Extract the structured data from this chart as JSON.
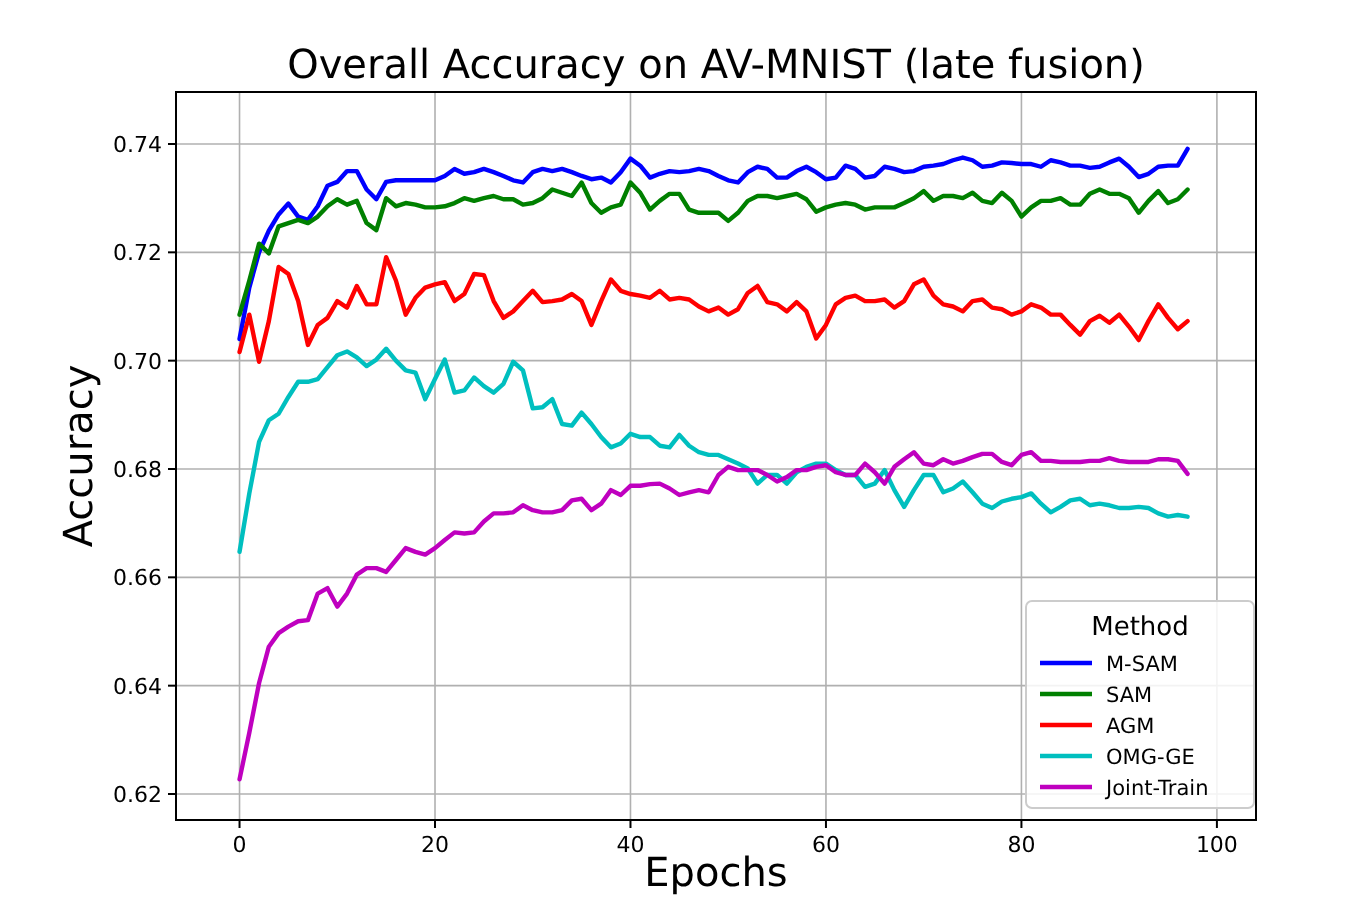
{
  "chart_data": {
    "type": "line",
    "title": "Overall Accuracy on AV-MNIST (late fusion)",
    "xlabel": "Epochs",
    "ylabel": "Accuracy",
    "legend_title": "Method",
    "legend": "bottom right",
    "grid": true,
    "marker": "none",
    "line_style": "solid",
    "x": [
      0,
      1,
      2,
      3,
      4,
      5,
      6,
      7,
      8,
      9,
      10,
      11,
      12,
      13,
      14,
      15,
      16,
      17,
      18,
      19,
      20,
      21,
      22,
      23,
      24,
      25,
      26,
      27,
      28,
      29,
      30,
      31,
      32,
      33,
      34,
      35,
      36,
      37,
      38,
      39,
      40,
      41,
      42,
      43,
      44,
      45,
      46,
      47,
      48,
      49,
      50,
      51,
      52,
      53,
      54,
      55,
      56,
      57,
      58,
      59,
      60,
      61,
      62,
      63,
      64,
      65,
      66,
      67,
      68,
      69,
      70,
      71,
      72,
      73,
      74,
      75,
      76,
      77,
      78,
      79,
      80,
      81,
      82,
      83,
      84,
      85,
      86,
      87,
      88,
      89,
      90,
      91,
      92,
      93,
      94,
      95,
      96,
      97
    ],
    "xlim": [
      -6.5,
      104
    ],
    "xticks": [
      0,
      20,
      40,
      60,
      80,
      100
    ],
    "ylim": [
      0.6152,
      0.7496
    ],
    "yticks": [
      0.62,
      0.64,
      0.66,
      0.68,
      {
        "value": 0.7,
        "label": "0.70"
      },
      0.72,
      0.74
    ],
    "series": [
      {
        "name": "M-SAM",
        "color": "#0000ff",
        "values": [
          0.704,
          0.7135,
          0.72,
          0.724,
          0.727,
          0.729,
          0.7266,
          0.726,
          0.7285,
          0.7323,
          0.733,
          0.735,
          0.735,
          0.7316,
          0.7298,
          0.733,
          0.7333,
          0.7333,
          0.7333,
          0.7333,
          0.7333,
          0.7341,
          0.7354,
          0.7345,
          0.7348,
          0.7354,
          0.7348,
          0.7341,
          0.7333,
          0.7329,
          0.7348,
          0.7354,
          0.735,
          0.7354,
          0.7348,
          0.7341,
          0.7335,
          0.7338,
          0.7329,
          0.7348,
          0.7373,
          0.736,
          0.7338,
          0.7345,
          0.735,
          0.7348,
          0.735,
          0.7354,
          0.735,
          0.7341,
          0.7333,
          0.7329,
          0.7348,
          0.7358,
          0.7354,
          0.7338,
          0.7338,
          0.735,
          0.7358,
          0.7348,
          0.7335,
          0.7338,
          0.736,
          0.7354,
          0.7338,
          0.7341,
          0.7358,
          0.7354,
          0.7348,
          0.735,
          0.7358,
          0.736,
          0.7363,
          0.737,
          0.7375,
          0.737,
          0.7358,
          0.736,
          0.7366,
          0.7365,
          0.7363,
          0.7363,
          0.7358,
          0.737,
          0.7366,
          0.736,
          0.736,
          0.7356,
          0.7358,
          0.7366,
          0.7373,
          0.7358,
          0.7339,
          0.7345,
          0.7358,
          0.736,
          0.736,
          0.7391
        ]
      },
      {
        "name": "SAM",
        "color": "#008000",
        "values": [
          0.7085,
          0.7148,
          0.7216,
          0.7198,
          0.7248,
          0.7254,
          0.726,
          0.7254,
          0.7266,
          0.7285,
          0.7298,
          0.7288,
          0.7295,
          0.7254,
          0.7241,
          0.73,
          0.7285,
          0.7291,
          0.7288,
          0.7283,
          0.7283,
          0.7285,
          0.7291,
          0.73,
          0.7295,
          0.73,
          0.7304,
          0.7298,
          0.7298,
          0.7288,
          0.7291,
          0.73,
          0.7316,
          0.731,
          0.7304,
          0.7329,
          0.7291,
          0.7273,
          0.7283,
          0.7288,
          0.7329,
          0.731,
          0.7279,
          0.7295,
          0.7308,
          0.7308,
          0.7279,
          0.7273,
          0.7273,
          0.7273,
          0.7258,
          0.7273,
          0.7295,
          0.7304,
          0.7304,
          0.73,
          0.7304,
          0.7308,
          0.7298,
          0.7275,
          0.7283,
          0.7288,
          0.7291,
          0.7288,
          0.7279,
          0.7283,
          0.7283,
          0.7283,
          0.7291,
          0.73,
          0.7313,
          0.7295,
          0.7304,
          0.7304,
          0.73,
          0.731,
          0.7295,
          0.7291,
          0.731,
          0.7295,
          0.7266,
          0.7283,
          0.7295,
          0.7295,
          0.73,
          0.7288,
          0.7288,
          0.7308,
          0.7316,
          0.7308,
          0.7308,
          0.73,
          0.7273,
          0.7295,
          0.7313,
          0.7291,
          0.7298,
          0.7316
        ]
      },
      {
        "name": "AGM",
        "color": "#ff0000",
        "values": [
          0.7016,
          0.7085,
          0.6998,
          0.7073,
          0.7173,
          0.716,
          0.711,
          0.7029,
          0.7066,
          0.7079,
          0.711,
          0.7098,
          0.7138,
          0.7104,
          0.7104,
          0.7191,
          0.7148,
          0.7085,
          0.7116,
          0.7135,
          0.7141,
          0.7145,
          0.711,
          0.7123,
          0.716,
          0.7158,
          0.711,
          0.7079,
          0.7091,
          0.711,
          0.7129,
          0.7108,
          0.711,
          0.7113,
          0.7123,
          0.711,
          0.7066,
          0.711,
          0.715,
          0.7129,
          0.7123,
          0.712,
          0.7116,
          0.7129,
          0.7113,
          0.7116,
          0.7113,
          0.71,
          0.7091,
          0.7098,
          0.7085,
          0.7095,
          0.7125,
          0.7138,
          0.7108,
          0.7104,
          0.7091,
          0.7108,
          0.7091,
          0.7041,
          0.7066,
          0.7104,
          0.7116,
          0.712,
          0.711,
          0.711,
          0.7113,
          0.7098,
          0.711,
          0.7141,
          0.715,
          0.712,
          0.7104,
          0.71,
          0.7091,
          0.711,
          0.7113,
          0.7098,
          0.7095,
          0.7085,
          0.7091,
          0.7104,
          0.7098,
          0.7085,
          0.7085,
          0.7066,
          0.7048,
          0.7073,
          0.7083,
          0.707,
          0.7085,
          0.7063,
          0.7038,
          0.7073,
          0.7104,
          0.7079,
          0.7058,
          0.7073
        ]
      },
      {
        "name": "OMG-GE",
        "color": "#00bfbf",
        "values": [
          0.6647,
          0.6755,
          0.685,
          0.689,
          0.6902,
          0.6933,
          0.6961,
          0.6961,
          0.6966,
          0.6988,
          0.701,
          0.7017,
          0.7006,
          0.699,
          0.7002,
          0.7022,
          0.7,
          0.6982,
          0.6978,
          0.6929,
          0.6966,
          0.7002,
          0.6941,
          0.6945,
          0.6969,
          0.6953,
          0.6941,
          0.6957,
          0.6998,
          0.6982,
          0.6912,
          0.6914,
          0.6929,
          0.6883,
          0.688,
          0.6904,
          0.6883,
          0.6859,
          0.684,
          0.6847,
          0.6865,
          0.6859,
          0.6859,
          0.6843,
          0.684,
          0.6863,
          0.6843,
          0.6831,
          0.6826,
          0.6826,
          0.6818,
          0.681,
          0.6801,
          0.6773,
          0.6789,
          0.6789,
          0.6773,
          0.6794,
          0.6804,
          0.681,
          0.681,
          0.6798,
          0.6789,
          0.6789,
          0.6767,
          0.6773,
          0.6798,
          0.6761,
          0.673,
          0.6761,
          0.6789,
          0.6789,
          0.6757,
          0.6764,
          0.6777,
          0.6757,
          0.6736,
          0.6728,
          0.674,
          0.6745,
          0.6748,
          0.6755,
          0.6736,
          0.672,
          0.673,
          0.6742,
          0.6745,
          0.6733,
          0.6736,
          0.6733,
          0.6728,
          0.6728,
          0.673,
          0.6728,
          0.6718,
          0.6712,
          0.6715,
          0.6712
        ]
      },
      {
        "name": "Joint-Train",
        "color": "#bf00bf",
        "values": [
          0.6227,
          0.6313,
          0.6405,
          0.6472,
          0.6497,
          0.6509,
          0.6519,
          0.6521,
          0.657,
          0.658,
          0.6546,
          0.657,
          0.6605,
          0.6617,
          0.6617,
          0.661,
          0.6632,
          0.6654,
          0.6647,
          0.6642,
          0.6654,
          0.6669,
          0.6683,
          0.6681,
          0.6683,
          0.6703,
          0.6718,
          0.6718,
          0.672,
          0.6733,
          0.6724,
          0.672,
          0.672,
          0.6724,
          0.6742,
          0.6745,
          0.6724,
          0.6736,
          0.6761,
          0.6752,
          0.6769,
          0.6769,
          0.6772,
          0.6773,
          0.6764,
          0.6752,
          0.6757,
          0.6761,
          0.6757,
          0.6789,
          0.6804,
          0.6798,
          0.6798,
          0.6798,
          0.6789,
          0.6777,
          0.6785,
          0.6798,
          0.6798,
          0.6804,
          0.6807,
          0.6794,
          0.6789,
          0.6789,
          0.681,
          0.6794,
          0.6773,
          0.6804,
          0.6818,
          0.6831,
          0.681,
          0.6807,
          0.6818,
          0.681,
          0.6815,
          0.6822,
          0.6828,
          0.6828,
          0.6813,
          0.6807,
          0.6826,
          0.6831,
          0.6815,
          0.6815,
          0.6813,
          0.6813,
          0.6813,
          0.6815,
          0.6815,
          0.682,
          0.6815,
          0.6813,
          0.6813,
          0.6813,
          0.6818,
          0.6818,
          0.6815,
          0.6791
        ]
      }
    ]
  }
}
